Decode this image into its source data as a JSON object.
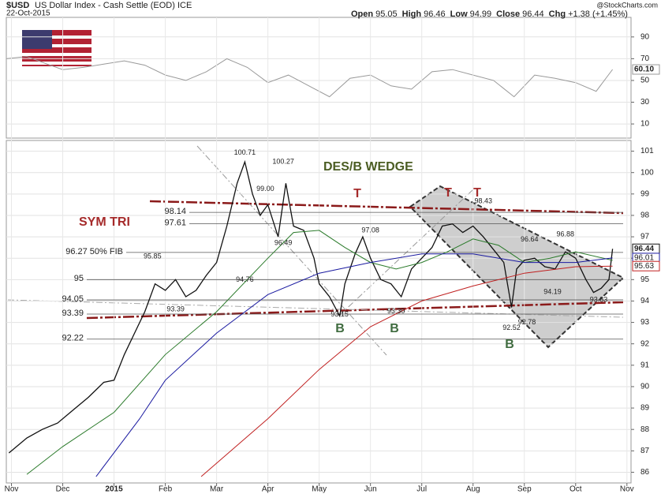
{
  "header": {
    "symbol": "$USD",
    "name": "US Dollar Index - Cash Settle (EOD) ICE",
    "date": "22-Oct-2015",
    "quote": [
      {
        "label": "Open",
        "value": "95.05"
      },
      {
        "label": "High",
        "value": "96.46"
      },
      {
        "label": "Low",
        "value": "94.99"
      },
      {
        "label": "Close",
        "value": "96.44"
      },
      {
        "label": "Chg",
        "value": "+1.38 (+1.45%)"
      }
    ],
    "credit": "@StockCharts.com"
  },
  "chart_data": [
    {
      "type": "line",
      "xlim": [
        -0.1,
        12.08
      ],
      "ylim": [
        -3,
        108
      ],
      "yticks": [
        10,
        30,
        50,
        70,
        90
      ],
      "grid": true,
      "series": [
        {
          "color": "#999999",
          "last_label": "60.10",
          "x": [
            -0.1,
            0.3,
            0.7,
            1,
            1.4,
            1.8,
            2.2,
            2.6,
            3,
            3.4,
            3.8,
            4.2,
            4.6,
            5,
            5.4,
            5.8,
            6.2,
            6.6,
            7,
            7.4,
            7.8,
            8.2,
            8.6,
            9,
            9.4,
            9.8,
            10.2,
            10.6,
            11,
            11.4,
            11.72
          ],
          "values": [
            70,
            72,
            65,
            60,
            62,
            65,
            68,
            64,
            55,
            50,
            58,
            70,
            62,
            48,
            55,
            45,
            35,
            52,
            55,
            45,
            42,
            58,
            60,
            55,
            50,
            35,
            55,
            52,
            48,
            40,
            60.1
          ]
        }
      ]
    },
    {
      "type": "line",
      "xlim": [
        -0.1,
        12.08
      ],
      "ylim": [
        85.5,
        101.5
      ],
      "yticks": [
        86,
        87,
        88,
        89,
        90,
        91,
        92,
        93,
        94,
        95,
        96,
        97,
        98,
        99,
        100,
        101
      ],
      "xticks": [
        {
          "value": 0,
          "label": "Nov"
        },
        {
          "value": 1,
          "label": "Dec"
        },
        {
          "value": 2,
          "label": "2015"
        },
        {
          "value": 3,
          "label": "Feb"
        },
        {
          "value": 4,
          "label": "Mar"
        },
        {
          "value": 5,
          "label": "Apr"
        },
        {
          "value": 6,
          "label": "May"
        },
        {
          "value": 7,
          "label": "Jun"
        },
        {
          "value": 8,
          "label": "Jul"
        },
        {
          "value": 9,
          "label": "Aug"
        },
        {
          "value": 10,
          "label": "Sep"
        },
        {
          "value": 11,
          "label": "Oct"
        },
        {
          "value": 12,
          "label": "Nov"
        }
      ],
      "grid": true,
      "series": [
        {
          "color": "#111111",
          "last_label": "96.44",
          "x": [
            -0.05,
            0.3,
            0.6,
            0.9,
            1.2,
            1.5,
            1.8,
            2.0,
            2.2,
            2.4,
            2.6,
            2.8,
            3.0,
            3.2,
            3.4,
            3.6,
            3.8,
            4.0,
            4.2,
            4.4,
            4.55,
            4.7,
            4.85,
            5.0,
            5.2,
            5.35,
            5.5,
            5.7,
            5.9,
            6.0,
            6.2,
            6.4,
            6.5,
            6.7,
            6.85,
            7.0,
            7.2,
            7.4,
            7.6,
            7.8,
            8.0,
            8.2,
            8.4,
            8.6,
            8.8,
            9.0,
            9.2,
            9.4,
            9.6,
            9.75,
            9.85,
            10.0,
            10.2,
            10.4,
            10.6,
            10.8,
            11.0,
            11.2,
            11.35,
            11.5,
            11.65,
            11.72
          ],
          "values": [
            86.9,
            87.6,
            88.0,
            88.3,
            88.9,
            89.5,
            90.2,
            90.3,
            91.5,
            92.5,
            93.5,
            94.8,
            94.5,
            95.0,
            94.2,
            94.5,
            95.2,
            95.8,
            97.5,
            99.5,
            100.5,
            99.0,
            98.0,
            98.5,
            97.0,
            99.5,
            97.5,
            97.3,
            96.0,
            94.8,
            94.2,
            93.3,
            94.8,
            96.2,
            97.0,
            96.0,
            95.0,
            94.8,
            94.2,
            95.5,
            96.0,
            96.5,
            97.5,
            97.6,
            97.2,
            97.5,
            97.0,
            96.4,
            95.8,
            93.7,
            95.5,
            95.9,
            96.0,
            95.6,
            95.5,
            96.3,
            96.0,
            95.0,
            94.4,
            94.6,
            95.0,
            96.44
          ]
        },
        {
          "color": "#2a7a2a",
          "x": [
            0.3,
            1,
            2,
            3,
            4,
            5,
            5.5,
            6,
            6.5,
            7,
            7.5,
            8,
            8.5,
            9,
            9.5,
            10,
            10.5,
            11,
            11.72
          ],
          "values": [
            85.9,
            87.2,
            88.8,
            91.5,
            93.5,
            96.0,
            97.2,
            97.3,
            96.5,
            95.8,
            95.5,
            95.8,
            96.3,
            96.9,
            96.6,
            95.8,
            96.0,
            96.3,
            95.9
          ]
        },
        {
          "color": "#1a1aa0",
          "last_label": "96.01",
          "x": [
            1.65,
            2.5,
            3,
            4,
            5,
            6,
            7,
            8,
            9,
            10,
            11,
            11.72
          ],
          "values": [
            85.8,
            88.5,
            90.3,
            92.5,
            94.3,
            95.3,
            95.8,
            96.2,
            96.2,
            95.8,
            95.8,
            96.01
          ]
        },
        {
          "color": "#c02020",
          "last_label": "95.63",
          "x": [
            3.7,
            5,
            6,
            7,
            8,
            9,
            10,
            11,
            11.72
          ],
          "values": [
            85.8,
            88.5,
            90.8,
            92.8,
            94.0,
            94.7,
            95.3,
            95.6,
            95.63
          ]
        }
      ],
      "hlines": [
        {
          "value": 98.14,
          "label": "98.14"
        },
        {
          "value": 97.61,
          "label": "97.61"
        },
        {
          "value": 96.27,
          "label": "96.27  50% FIB"
        },
        {
          "value": 95,
          "label": "95"
        },
        {
          "value": 94.05,
          "label": "94.05"
        },
        {
          "value": 93.39,
          "label": "93.39"
        },
        {
          "value": 92.22,
          "label": "92.22"
        }
      ],
      "point_labels": [
        {
          "x": 4.55,
          "value": 100.71,
          "label": "100.71"
        },
        {
          "x": 5.3,
          "value": 100.27,
          "label": "100.27"
        },
        {
          "x": 4.95,
          "value": 99.0,
          "label": "99.00"
        },
        {
          "x": 2.75,
          "value": 95.85,
          "label": "95.85"
        },
        {
          "x": 4.55,
          "value": 94.76,
          "label": "94.76"
        },
        {
          "x": 5.3,
          "value": 96.49,
          "label": "96.49"
        },
        {
          "x": 3.2,
          "value": 93.39,
          "label": "93.39"
        },
        {
          "x": 6.4,
          "value": 93.15,
          "label": "93.15"
        },
        {
          "x": 7.0,
          "value": 97.08,
          "label": "97.08"
        },
        {
          "x": 7.5,
          "value": 93.3,
          "label": "93.30"
        },
        {
          "x": 9.2,
          "value": 98.43,
          "label": "98.43"
        },
        {
          "x": 10.1,
          "value": 96.64,
          "label": "96.64"
        },
        {
          "x": 10.8,
          "value": 96.88,
          "label": "96.88"
        },
        {
          "x": 10.55,
          "value": 94.19,
          "label": "94.19"
        },
        {
          "x": 9.75,
          "value": 92.52,
          "label": "92.52"
        },
        {
          "x": 11.45,
          "value": 93.83,
          "label": "93.83"
        },
        {
          "x": 10.05,
          "value": 92.78,
          "label": "92.78"
        }
      ],
      "annotations": [
        "SYM TRI",
        "DES/B WEDGE",
        "T",
        "T",
        "T",
        "B",
        "B",
        "B"
      ]
    }
  ]
}
